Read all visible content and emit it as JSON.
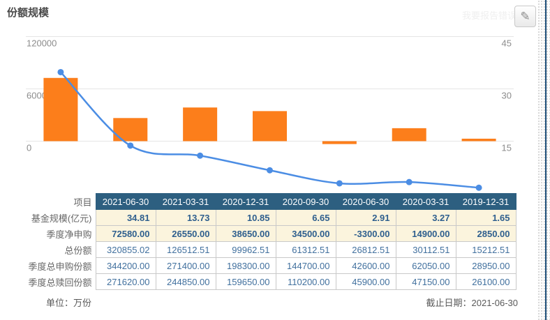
{
  "header": {
    "title": "份额规模",
    "report_error_text": "我要报告错误"
  },
  "chart_data": {
    "type": "bar",
    "note": "combination chart: bars (left axis) + smooth line with markers (right axis), no visible x tick labels, no legend",
    "categories": [
      "2021-06-30",
      "2021-03-31",
      "2020-12-31",
      "2020-09-30",
      "2020-06-30",
      "2020-03-31",
      "2019-12-31"
    ],
    "series": [
      {
        "name": "季度净申购",
        "type": "bar",
        "axis": "left",
        "color": "#fc7e1b",
        "values": [
          72580,
          26550,
          38650,
          34500,
          -3300,
          14900,
          2850
        ]
      },
      {
        "name": "基金规模(亿元)",
        "type": "line",
        "axis": "right",
        "color": "#4b8de4",
        "values": [
          34.81,
          13.73,
          10.85,
          6.65,
          2.91,
          3.27,
          1.65
        ]
      }
    ],
    "left_axis": {
      "ticks": [
        "120000",
        "60000",
        "0"
      ],
      "tick_values": [
        120000,
        60000,
        0
      ],
      "min": -60000,
      "max": 120000
    },
    "right_axis": {
      "ticks": [
        "45",
        "30",
        "15"
      ],
      "tick_values": [
        45,
        30,
        15
      ],
      "min": 0,
      "max": 45
    },
    "grid": true,
    "legend": false,
    "grid_color": "#e5e5e5",
    "axis_label_color": "#8c8c8c"
  },
  "table": {
    "corner_label": "项目",
    "columns": [
      "2021-06-30",
      "2021-03-31",
      "2020-12-31",
      "2020-09-30",
      "2020-06-30",
      "2020-03-31",
      "2019-12-31"
    ],
    "rows": [
      {
        "label": "基金规模(亿元)",
        "highlight": true,
        "values": [
          "34.81",
          "13.73",
          "10.85",
          "6.65",
          "2.91",
          "3.27",
          "1.65"
        ]
      },
      {
        "label": "季度净申购",
        "highlight": true,
        "values": [
          "72580.00",
          "26550.00",
          "38650.00",
          "34500.00",
          "-3300.00",
          "14900.00",
          "2850.00"
        ]
      },
      {
        "label": "总份额",
        "highlight": false,
        "values": [
          "320855.02",
          "126512.51",
          "99962.51",
          "61312.51",
          "26812.51",
          "30112.51",
          "15212.51"
        ]
      },
      {
        "label": "季度总申购份额",
        "highlight": false,
        "values": [
          "344200.00",
          "271400.00",
          "198300.00",
          "144700.00",
          "42600.00",
          "62050.00",
          "28950.00"
        ]
      },
      {
        "label": "季度总赎回份额",
        "highlight": false,
        "values": [
          "271620.00",
          "244850.00",
          "159650.00",
          "110200.00",
          "45900.00",
          "47150.00",
          "26100.00"
        ]
      }
    ]
  },
  "footer": {
    "unit_label": "单位：万份",
    "as_of_label": "截止日期：2021-06-30"
  }
}
